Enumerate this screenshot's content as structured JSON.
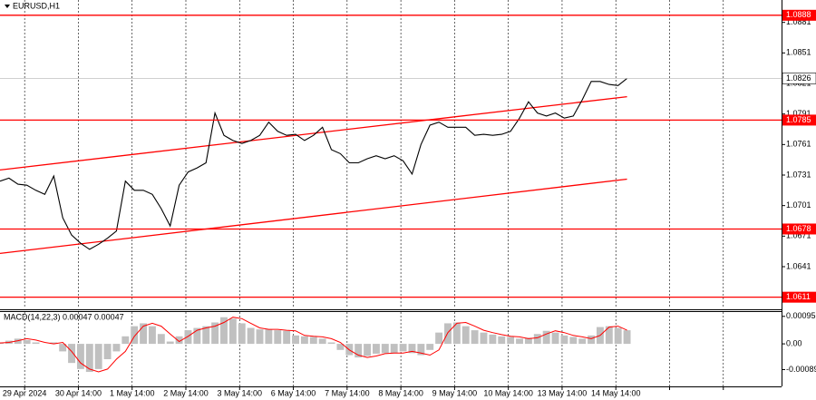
{
  "chart_data": [
    {
      "type": "line",
      "title": "EURUSD,H1",
      "color": "#000000",
      "x": [
        0,
        4,
        8,
        12,
        16,
        20,
        24,
        28,
        32,
        36,
        40,
        44,
        48,
        52,
        56,
        60,
        64,
        68,
        72,
        76,
        80,
        84,
        88,
        92,
        96,
        100,
        104,
        108,
        112,
        116,
        120,
        124,
        128,
        132,
        136,
        140,
        144,
        148,
        152,
        156,
        160,
        164,
        168,
        172,
        176,
        180,
        184,
        188,
        192,
        196,
        200,
        204,
        208,
        212,
        216,
        220,
        224,
        228,
        232,
        236,
        240,
        244,
        248,
        252,
        256,
        260,
        264,
        268,
        272,
        276,
        280
      ],
      "values": [
        1.0725,
        1.0728,
        1.0722,
        1.0721,
        1.0716,
        1.0712,
        1.073,
        1.0689,
        1.0672,
        1.0664,
        1.0658,
        1.0663,
        1.0669,
        1.0676,
        1.0725,
        1.0716,
        1.0716,
        1.0712,
        1.0698,
        1.0681,
        1.0721,
        1.0734,
        1.0738,
        1.0743,
        1.0792,
        1.077,
        1.0765,
        1.0762,
        1.0765,
        1.077,
        1.0783,
        1.0774,
        1.077,
        1.0771,
        1.0765,
        1.077,
        1.0778,
        1.0756,
        1.0752,
        1.0743,
        1.0743,
        1.0747,
        1.075,
        1.0747,
        1.075,
        1.0745,
        1.0732,
        1.0761,
        1.078,
        1.0783,
        1.0778,
        1.0778,
        1.0778,
        1.077,
        1.0771,
        1.077,
        1.0771,
        1.0774,
        1.0787,
        1.0803,
        1.0792,
        1.0789,
        1.0792,
        1.0787,
        1.0789,
        1.0805,
        1.0823,
        1.0823,
        1.082,
        1.0819,
        1.0826
      ],
      "xlim": [
        0,
        349
      ],
      "xticks": [
        {
          "value": 11,
          "label": "29 Apr 2024"
        },
        {
          "value": 35,
          "label": "30 Apr 14:00"
        },
        {
          "value": 59,
          "label": "1 May 14:00"
        },
        {
          "value": 83,
          "label": "2 May 14:00"
        },
        {
          "value": 107,
          "label": "3 May 14:00"
        },
        {
          "value": 131,
          "label": "6 May 14:00"
        },
        {
          "value": 155,
          "label": "7 May 14:00"
        },
        {
          "value": 179,
          "label": "8 May 14:00"
        },
        {
          "value": 203,
          "label": "9 May 14:00"
        },
        {
          "value": 227,
          "label": "10 May 14:00"
        },
        {
          "value": 251,
          "label": "13 May 14:00"
        },
        {
          "value": 275,
          "label": "14 May 14:00"
        },
        {
          "value": 299,
          "label": null
        },
        {
          "value": 323,
          "label": null
        }
      ],
      "ylim": [
        1.06,
        1.0903
      ],
      "yticks": [
        1.0881,
        1.0851,
        1.0821,
        1.0791,
        1.0761,
        1.0731,
        1.0701,
        1.0671,
        1.0641
      ],
      "levels": [
        {
          "value": 1.0888,
          "color": "#ff0000"
        },
        {
          "value": 1.0785,
          "color": "#ff0000"
        },
        {
          "value": 1.0678,
          "color": "#ff0000"
        },
        {
          "value": 1.0611,
          "color": "#ff0000"
        }
      ],
      "current_price": 1.0826,
      "trendlines": [
        {
          "x": [
            0,
            280
          ],
          "y": [
            1.0736,
            1.0808
          ]
        },
        {
          "x": [
            0,
            280
          ],
          "y": [
            1.0654,
            1.0727
          ]
        }
      ],
      "trendline_color": "#ff0000"
    },
    {
      "type": "macd",
      "title": "MACD(14,22,3) 0.00047 0.00047",
      "color": "#c0c0c0",
      "signal_color": "#ff0000",
      "x": [
        0,
        4,
        8,
        12,
        16,
        20,
        24,
        28,
        32,
        36,
        40,
        44,
        48,
        52,
        56,
        60,
        64,
        68,
        72,
        76,
        80,
        84,
        88,
        92,
        96,
        100,
        104,
        108,
        112,
        116,
        120,
        124,
        128,
        132,
        136,
        140,
        144,
        148,
        152,
        156,
        160,
        164,
        168,
        172,
        176,
        180,
        184,
        188,
        192,
        196,
        200,
        204,
        208,
        212,
        216,
        220,
        224,
        228,
        232,
        236,
        240,
        244,
        248,
        252,
        256,
        260,
        264,
        268,
        272,
        276,
        280
      ],
      "values": [
        5e-05,
        0.00011,
        0.00018,
        0.00013,
        5e-05,
        0,
        5e-05,
        -0.00026,
        -0.00066,
        -0.00087,
        -0.00097,
        -0.00087,
        -0.00053,
        -0.00026,
        0.00026,
        0.00061,
        0.00071,
        0.00061,
        0.00034,
        8e-05,
        0.00026,
        0.00047,
        0.00055,
        0.00061,
        0.00074,
        0.00092,
        0.00087,
        0.00071,
        0.00055,
        0.0005,
        0.0005,
        0.00047,
        0.00045,
        0.00029,
        0.00026,
        0.00024,
        0.00018,
        5e-05,
        -0.00021,
        -0.00039,
        -0.00047,
        -0.00042,
        -0.00034,
        -0.00032,
        -0.00032,
        -0.00026,
        -0.00032,
        -0.00039,
        -0.00021,
        0.00039,
        0.00071,
        0.00074,
        0.00061,
        0.00047,
        0.00039,
        0.00032,
        0.00026,
        0.00024,
        0.00018,
        0.00021,
        0.00034,
        0.00045,
        0.00039,
        0.00029,
        0.00024,
        0.00018,
        0.00029,
        0.00058,
        0.00061,
        0.00055,
        0.00047
      ],
      "signal_values": [
        3e-05,
        5e-05,
        0.00011,
        0.00018,
        0.00013,
        5e-05,
        0,
        5e-05,
        -0.00026,
        -0.00066,
        -0.00087,
        -0.00097,
        -0.00087,
        -0.00053,
        -0.00026,
        0.00026,
        0.00061,
        0.00071,
        0.00061,
        0.00034,
        8e-05,
        0.00026,
        0.00047,
        0.00055,
        0.00061,
        0.00074,
        0.00092,
        0.00087,
        0.00071,
        0.00055,
        0.0005,
        0.0005,
        0.00047,
        0.00045,
        0.00029,
        0.00026,
        0.00024,
        0.00018,
        5e-05,
        -0.00021,
        -0.00039,
        -0.00047,
        -0.00042,
        -0.00034,
        -0.00032,
        -0.00032,
        -0.00026,
        -0.00032,
        -0.00039,
        -0.00021,
        0.00039,
        0.00071,
        0.00074,
        0.00061,
        0.00047,
        0.00039,
        0.00032,
        0.00026,
        0.00024,
        0.00018,
        0.00021,
        0.00034,
        0.00045,
        0.00039,
        0.00029,
        0.00024,
        0.00018,
        0.00029,
        0.00058,
        0.00061,
        0.00047
      ],
      "xlim": [
        0,
        349
      ],
      "ylim": [
        -0.00147,
        0.0011
      ],
      "yticks": [
        0.00095,
        {
          "value": 0,
          "label": "0.00"
        },
        -0.00089
      ]
    }
  ]
}
